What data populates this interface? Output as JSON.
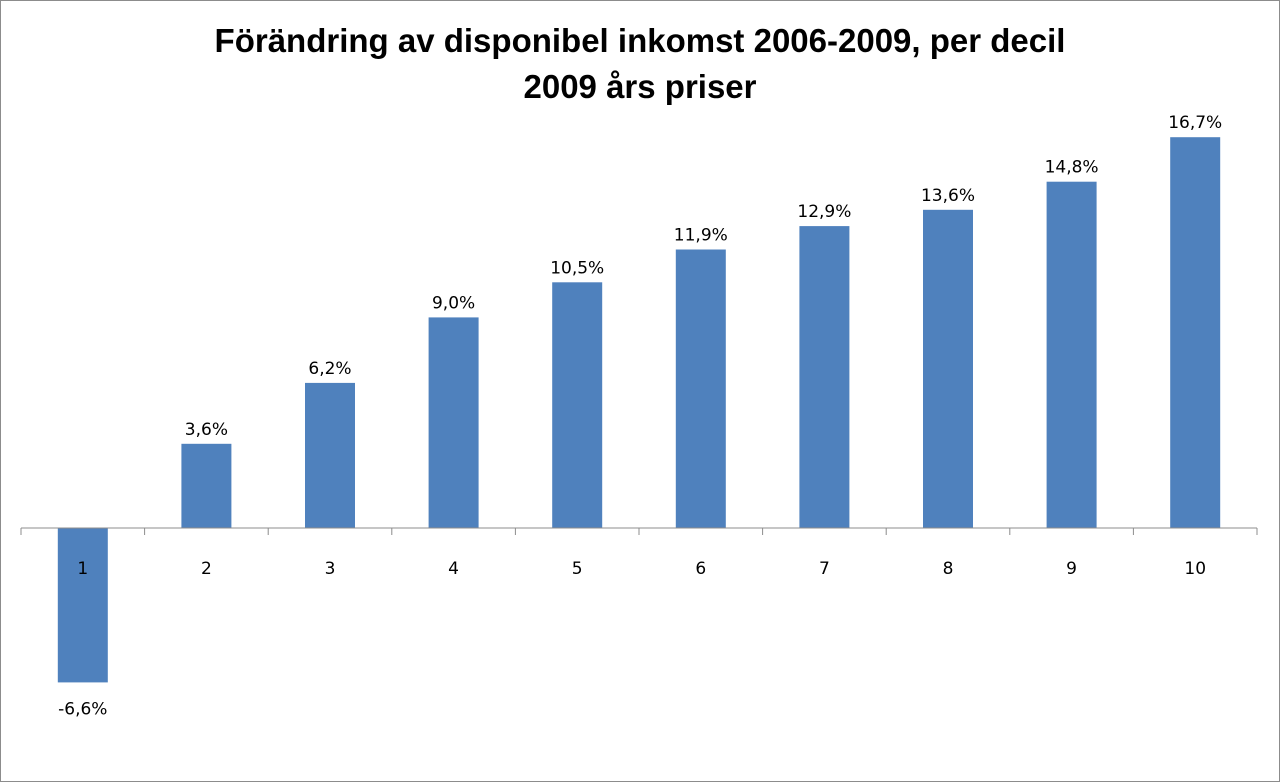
{
  "chart_data": {
    "type": "bar",
    "title": "Förändring av disponibel inkomst 2006-2009, per decil",
    "subtitle": "2009 års priser",
    "xlabel": "",
    "ylabel": "",
    "categories": [
      "1",
      "2",
      "3",
      "4",
      "5",
      "6",
      "7",
      "8",
      "9",
      "10"
    ],
    "values": [
      -6.6,
      3.6,
      6.2,
      9.0,
      10.5,
      11.9,
      12.9,
      13.6,
      14.8,
      16.7
    ],
    "data_labels": [
      "-6,6%",
      "3,6%",
      "6,2%",
      "9,0%",
      "10,5%",
      "11,9%",
      "12,9%",
      "13,6%",
      "14,8%",
      "16,7%"
    ],
    "ylim": [
      -8,
      18
    ],
    "grid": false,
    "legend": "none",
    "bar_color": "#4f81bd"
  }
}
